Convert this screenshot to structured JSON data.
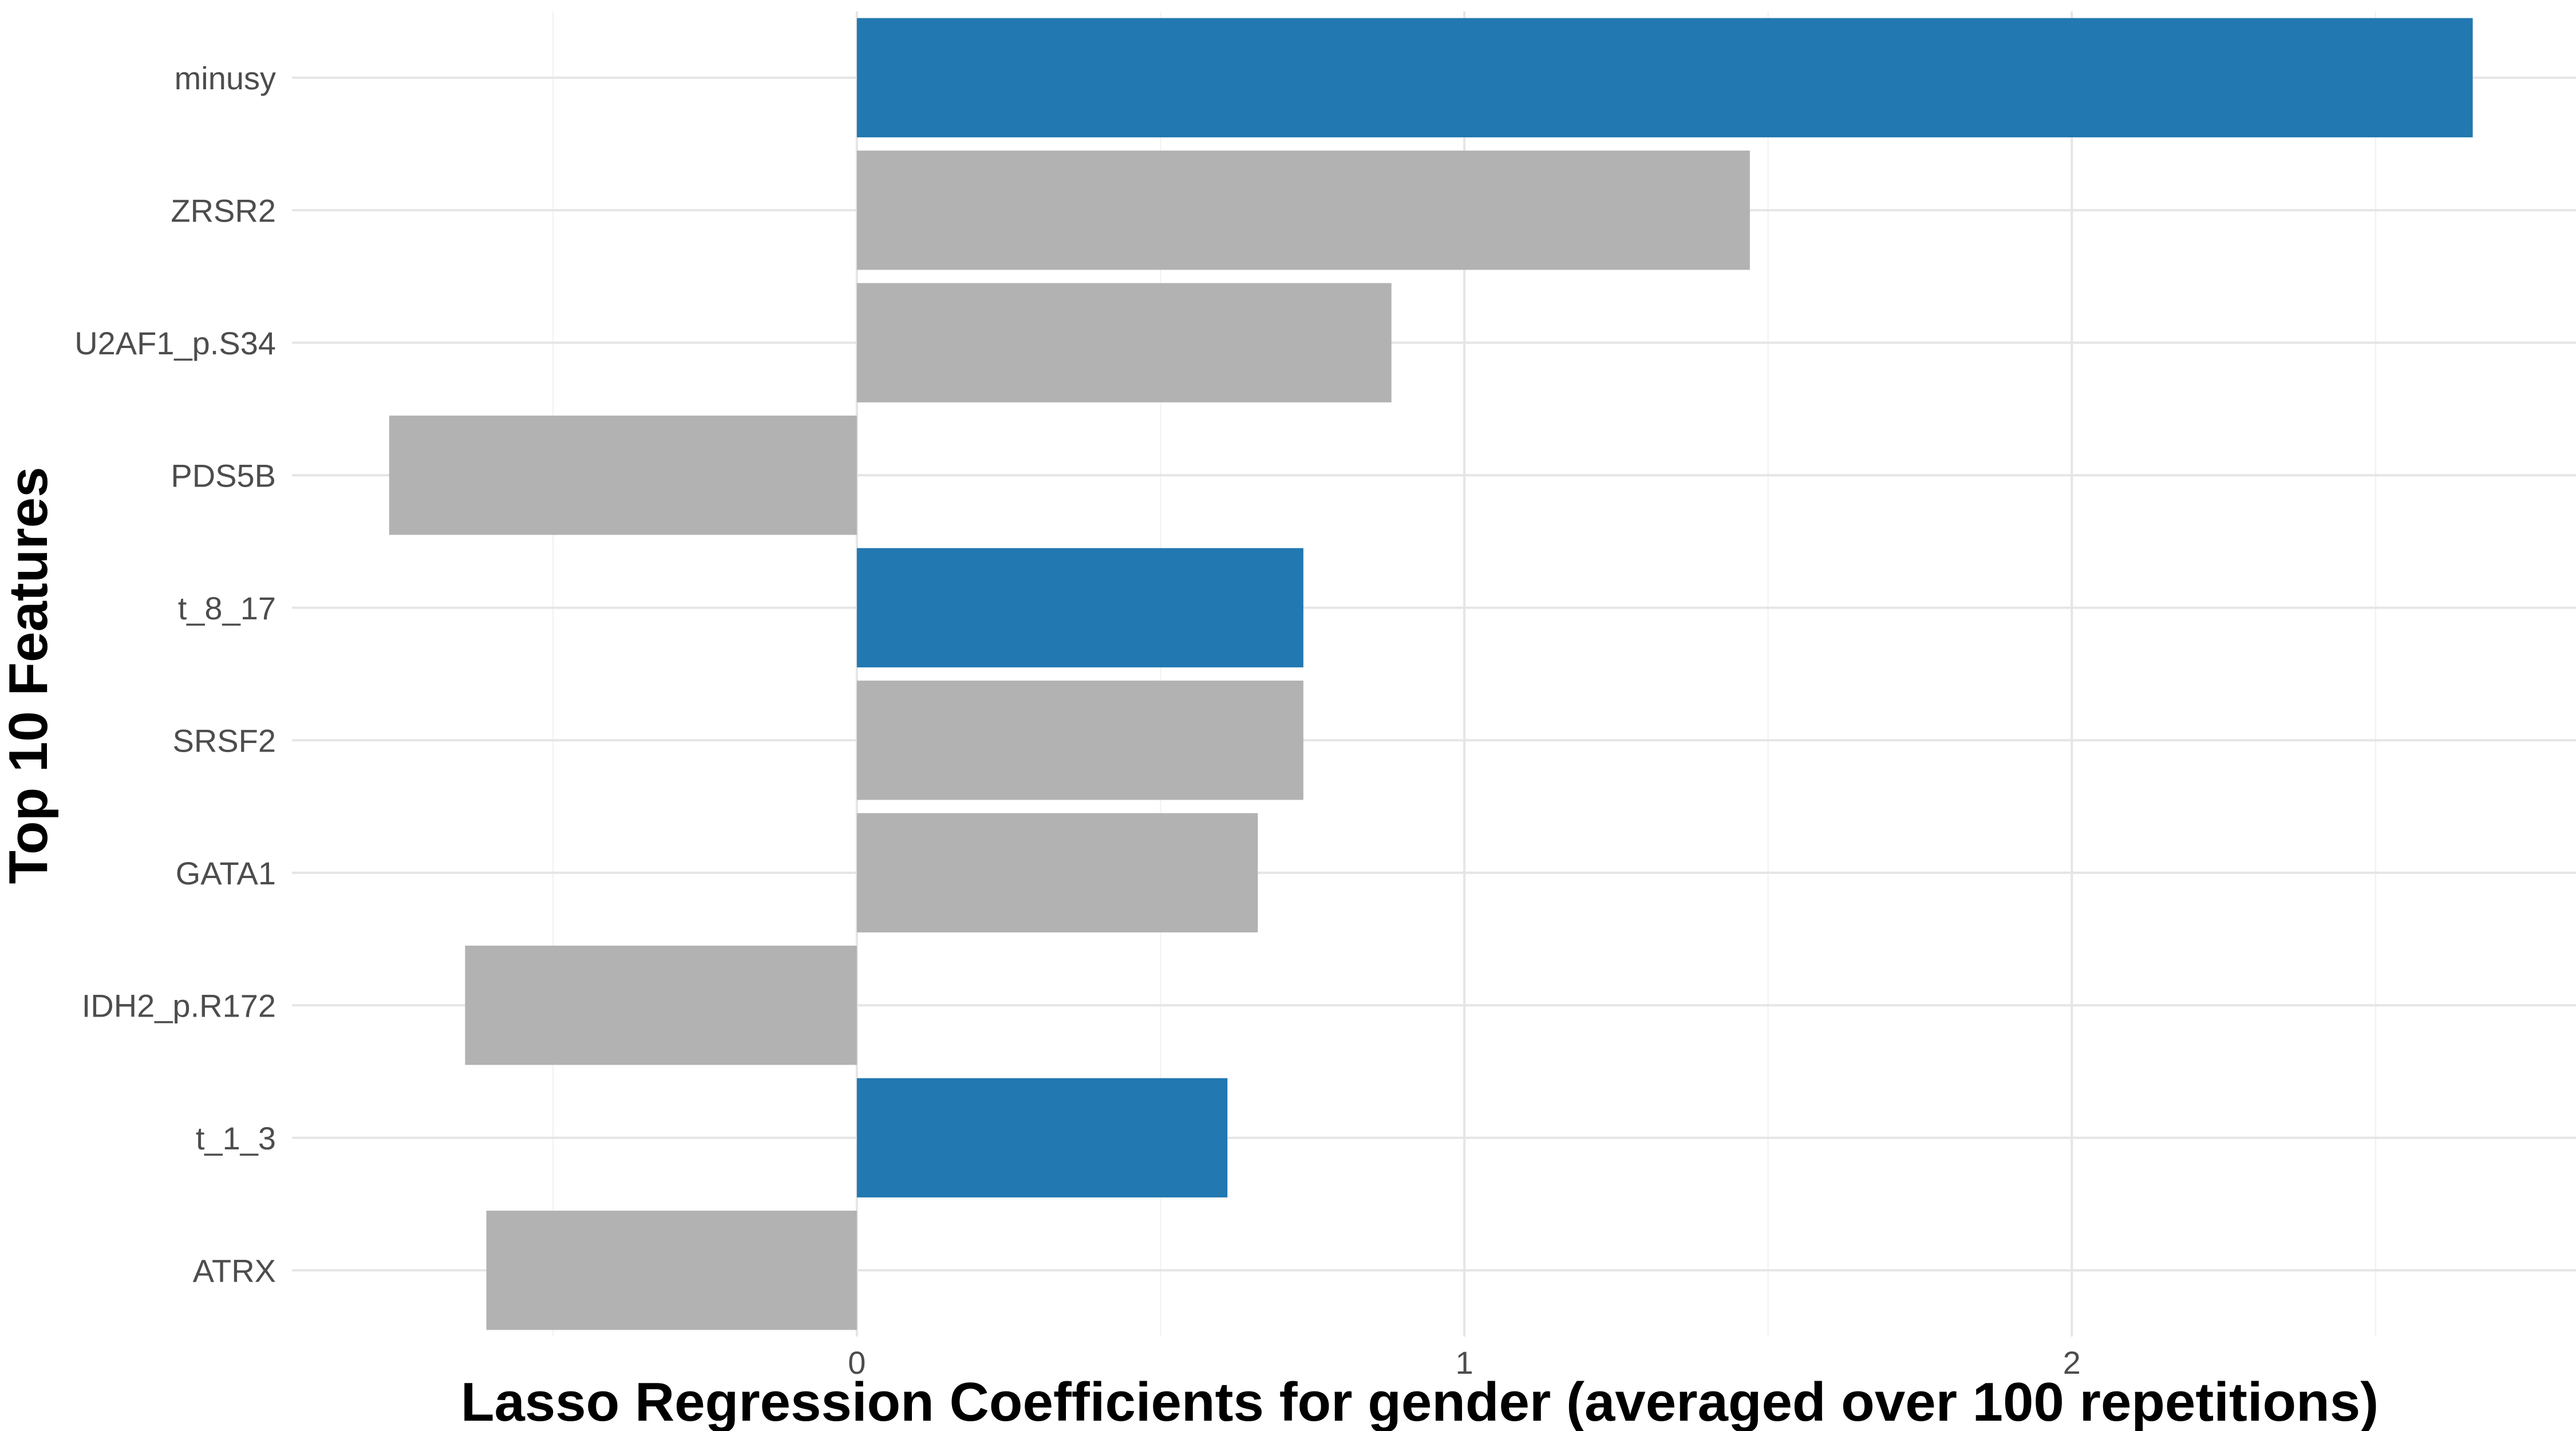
{
  "chart_data": {
    "type": "bar",
    "orientation": "horizontal",
    "xlabel": "Lasso Regression Coefficients for gender (averaged over 100 repetitions)",
    "ylabel": "Top 10 Features",
    "xlim": [
      -0.93,
      2.83
    ],
    "x_ticks": [
      0,
      1,
      2
    ],
    "grid": true,
    "categories": [
      "minusy",
      "ZRSR2",
      "U2AF1_p.S34",
      "PDS5B",
      "t_8_17",
      "SRSF2",
      "GATA1",
      "IDH2_p.R172",
      "t_1_3",
      "ATRX"
    ],
    "values": [
      2.66,
      1.47,
      0.88,
      -0.77,
      0.735,
      0.735,
      0.66,
      -0.645,
      0.61,
      -0.61
    ],
    "bar_colors": [
      "#2278B0",
      "#B2B2B2",
      "#B2B2B2",
      "#B2B2B2",
      "#2278B0",
      "#B2B2B2",
      "#B2B2B2",
      "#B2B2B2",
      "#2278B0",
      "#B2B2B2"
    ]
  }
}
